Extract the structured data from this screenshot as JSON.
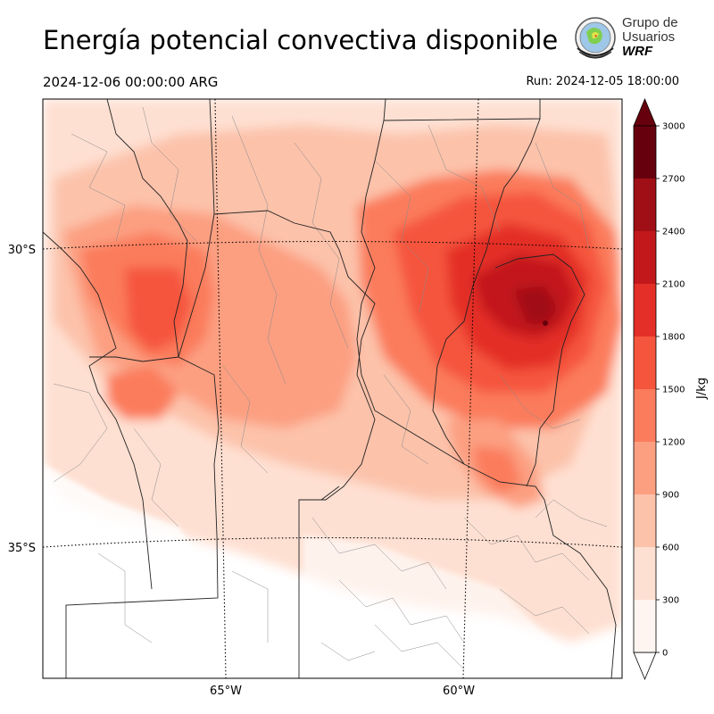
{
  "header": {
    "title": "Energía potencial convectiva disponible",
    "valid_time": "2024-12-06 00:00:00 ARG",
    "run_time": "Run: 2024-12-05 18:00:00"
  },
  "logo": {
    "line1": "Grupo de",
    "line2": "Usuarios",
    "line3": "WRF"
  },
  "map": {
    "lat_labels": [
      "30°S",
      "35°S"
    ],
    "lon_labels": [
      "65°W",
      "60°W"
    ]
  },
  "colorbar": {
    "unit": "J/kg",
    "ticks": [
      "0",
      "300",
      "600",
      "900",
      "1200",
      "1500",
      "1800",
      "2100",
      "2400",
      "2700",
      "3000"
    ],
    "colors": [
      "#fff5f0",
      "#fee0d2",
      "#fcc2aa",
      "#fc9f81",
      "#fb7c5c",
      "#f5553c",
      "#e32f27",
      "#c2181c",
      "#a00f15",
      "#67000d"
    ]
  }
}
